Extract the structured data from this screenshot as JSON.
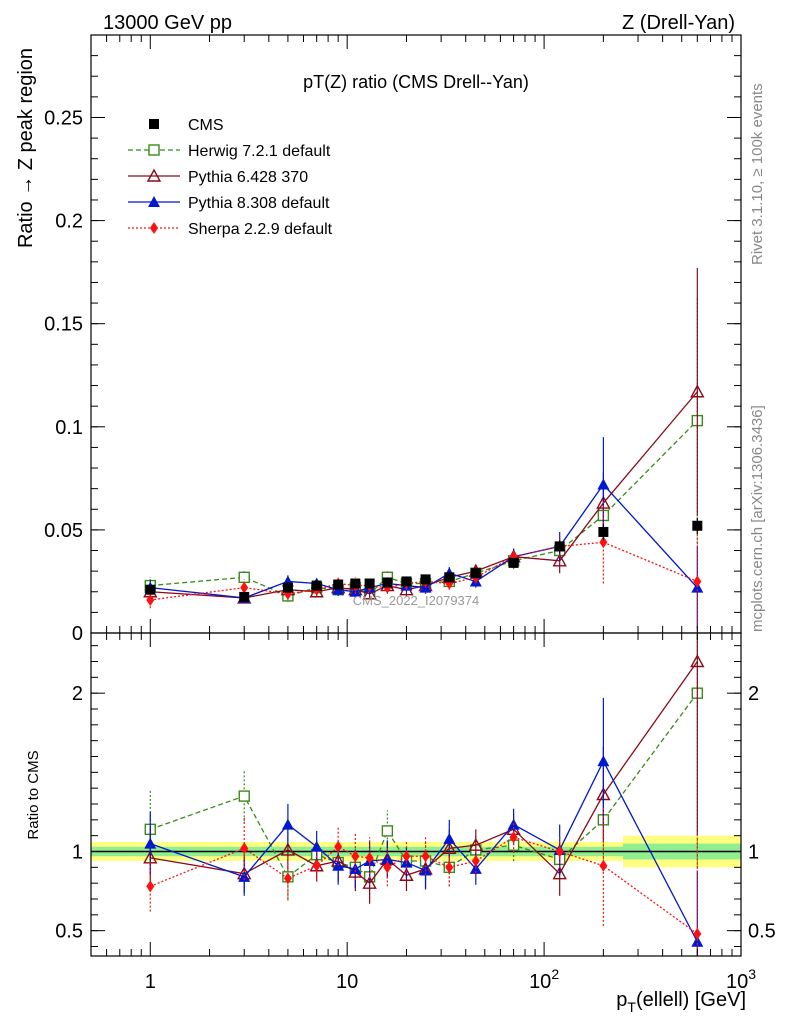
{
  "header": {
    "left": "13000 GeV pp",
    "right": "Z (Drell-Yan)",
    "side_top": "Rivet 3.1.10, ≥ 100k events",
    "side_bottom": "mcplots.cern.ch [arXiv:1306.3436]"
  },
  "chart_data": [
    {
      "type": "line",
      "title": "pT(Z) ratio (CMS Drell--Yan)",
      "ylabel": "Ratio → Z peak region",
      "watermark": "CMS_2022_I2079374",
      "xscale": "log",
      "xlim": [
        0.5,
        1000
      ],
      "ylim": [
        0,
        0.29
      ],
      "yticks": [
        {
          "v": 0,
          "label": "0"
        },
        {
          "v": 0.05,
          "label": "0.05"
        },
        {
          "v": 0.1,
          "label": "0.1"
        },
        {
          "v": 0.15,
          "label": "0.15"
        },
        {
          "v": 0.2,
          "label": "0.2"
        },
        {
          "v": 0.25,
          "label": "0.25"
        }
      ],
      "legend_position": "top-left",
      "series": [
        {
          "name": "CMS",
          "color": "#000000",
          "marker": "square-filled",
          "dash": "none",
          "x": [
            1,
            3,
            5,
            7,
            9,
            11,
            13,
            16,
            20,
            25,
            33,
            45,
            70,
            120,
            200,
            600
          ],
          "y": [
            0.021,
            0.0175,
            0.022,
            0.023,
            0.0235,
            0.024,
            0.024,
            0.0245,
            0.025,
            0.026,
            0.027,
            0.029,
            0.034,
            0.042,
            0.049,
            0.052
          ],
          "err": [
            0.002,
            0.001,
            0.001,
            0.001,
            0.001,
            0.001,
            0.001,
            0.001,
            0.001,
            0.001,
            0.0015,
            0.002,
            0.002,
            0.003,
            0.004,
            0.004
          ]
        },
        {
          "name": "Herwig 7.2.1 default",
          "color": "#3a8a1a",
          "marker": "square-open",
          "dash": "5,3",
          "x": [
            1,
            3,
            5,
            7,
            9,
            11,
            13,
            16,
            20,
            25,
            33,
            45,
            70,
            120,
            200,
            600
          ],
          "y": [
            0.023,
            0.027,
            0.018,
            0.022,
            0.021,
            0.022,
            0.019,
            0.027,
            0.024,
            0.024,
            0.025,
            0.029,
            0.035,
            0.04,
            0.057,
            0.103
          ],
          "err": [
            0.004,
            0.003,
            0.003,
            0.002,
            0.003,
            0.003,
            0.003,
            0.003,
            0.002,
            0.003,
            0.003,
            0.003,
            0.004,
            0.005,
            0.015,
            0.06
          ]
        },
        {
          "name": "Pythia 6.428 370",
          "color": "#8b0a1a",
          "marker": "triangle-open",
          "dash": "none",
          "x": [
            1,
            3,
            5,
            7,
            9,
            11,
            13,
            16,
            20,
            25,
            33,
            45,
            70,
            120,
            200,
            600
          ],
          "y": [
            0.02,
            0.017,
            0.021,
            0.02,
            0.022,
            0.021,
            0.019,
            0.023,
            0.021,
            0.023,
            0.027,
            0.03,
            0.037,
            0.035,
            0.063,
            0.117
          ],
          "err": [
            0.004,
            0.002,
            0.003,
            0.002,
            0.003,
            0.003,
            0.003,
            0.003,
            0.003,
            0.003,
            0.003,
            0.003,
            0.004,
            0.006,
            0.015,
            0.06
          ]
        },
        {
          "name": "Pythia 8.308 default",
          "color": "#0018d0",
          "marker": "triangle-filled",
          "dash": "none",
          "x": [
            1,
            3,
            5,
            7,
            9,
            11,
            13,
            16,
            20,
            25,
            33,
            45,
            70,
            120,
            200,
            600
          ],
          "y": [
            0.022,
            0.017,
            0.025,
            0.024,
            0.021,
            0.02,
            0.022,
            0.024,
            0.023,
            0.022,
            0.029,
            0.025,
            0.037,
            0.042,
            0.072,
            0.022
          ],
          "err": [
            0.004,
            0.002,
            0.003,
            0.002,
            0.003,
            0.003,
            0.003,
            0.003,
            0.003,
            0.003,
            0.003,
            0.003,
            0.004,
            0.007,
            0.023,
            0.02
          ]
        },
        {
          "name": "Sherpa 2.2.9 default",
          "color": "#ff1010",
          "marker": "diamond-filled",
          "dash": "2,2",
          "x": [
            1,
            3,
            5,
            7,
            9,
            11,
            13,
            16,
            20,
            25,
            33,
            45,
            70,
            120,
            200,
            600
          ],
          "y": [
            0.016,
            0.022,
            0.019,
            0.021,
            0.024,
            0.023,
            0.023,
            0.022,
            0.024,
            0.025,
            0.024,
            0.027,
            0.037,
            0.042,
            0.044,
            0.025
          ],
          "err": [
            0.004,
            0.004,
            0.003,
            0.003,
            0.003,
            0.004,
            0.003,
            0.003,
            0.003,
            0.003,
            0.003,
            0.003,
            0.004,
            0.005,
            0.02,
            0.03
          ]
        }
      ]
    },
    {
      "type": "line",
      "title": "",
      "xlabel": "p_T(ellell) [GeV]",
      "xlabel_main": "p",
      "xlabel_sub": "T",
      "xlabel_rest": "(ellell) [GeV]",
      "ylabel": "Ratio to CMS",
      "xscale": "log",
      "xlim": [
        0.5,
        1000
      ],
      "ylim": [
        0.34,
        2.38
      ],
      "xticks": [
        {
          "v": 1,
          "base": "1",
          "exp": ""
        },
        {
          "v": 10,
          "base": "10",
          "exp": ""
        },
        {
          "v": 100,
          "base": "10",
          "exp": "2"
        },
        {
          "v": 1000,
          "base": "10",
          "exp": "3"
        }
      ],
      "yticks": [
        {
          "v": 0.5,
          "label": "0.5"
        },
        {
          "v": 1,
          "label": "1"
        },
        {
          "v": 2,
          "label": "2"
        }
      ],
      "band_color_inner": "#90ee90",
      "band_color_outer": "#ffff80",
      "series": [
        {
          "name": "Herwig 7.2.1 default",
          "color": "#3a8a1a",
          "marker": "square-open",
          "dash": "5,3",
          "x": [
            1,
            3,
            5,
            7,
            9,
            11,
            13,
            16,
            20,
            25,
            33,
            45,
            70,
            120,
            200,
            600
          ],
          "y": [
            1.14,
            1.35,
            0.84,
            0.98,
            0.93,
            0.9,
            0.84,
            1.13,
            0.94,
            0.94,
            0.9,
            1.01,
            1.04,
            0.95,
            1.2,
            2.0
          ],
          "err": [
            0.25,
            0.16,
            0.15,
            0.1,
            0.12,
            0.12,
            0.14,
            0.13,
            0.1,
            0.12,
            0.12,
            0.1,
            0.1,
            0.1,
            0.3,
            1.1
          ]
        },
        {
          "name": "Pythia 6.428 370",
          "color": "#8b0a1a",
          "marker": "triangle-open",
          "dash": "none",
          "x": [
            1,
            3,
            5,
            7,
            9,
            11,
            13,
            16,
            20,
            25,
            33,
            45,
            70,
            120,
            200,
            600
          ],
          "y": [
            0.96,
            0.86,
            1.01,
            0.91,
            0.94,
            0.87,
            0.8,
            0.95,
            0.85,
            0.89,
            1.02,
            1.04,
            1.14,
            0.86,
            1.36,
            2.2
          ],
          "err": [
            0.2,
            0.12,
            0.13,
            0.1,
            0.12,
            0.12,
            0.13,
            0.12,
            0.1,
            0.12,
            0.12,
            0.1,
            0.1,
            0.14,
            0.3,
            1.1
          ]
        },
        {
          "name": "Pythia 8.308 default",
          "color": "#0018d0",
          "marker": "triangle-filled",
          "dash": "none",
          "x": [
            1,
            3,
            5,
            7,
            9,
            11,
            13,
            16,
            20,
            25,
            33,
            45,
            70,
            120,
            200,
            600
          ],
          "y": [
            1.05,
            0.84,
            1.17,
            1.03,
            0.91,
            0.89,
            0.94,
            0.95,
            0.93,
            0.88,
            1.08,
            0.89,
            1.17,
            1.01,
            1.57,
            0.43
          ],
          "err": [
            0.2,
            0.12,
            0.13,
            0.1,
            0.12,
            0.12,
            0.13,
            0.12,
            0.1,
            0.12,
            0.12,
            0.1,
            0.1,
            0.16,
            0.4,
            0.45
          ]
        },
        {
          "name": "Sherpa 2.2.9 default",
          "color": "#ff1010",
          "marker": "diamond-filled",
          "dash": "2,2",
          "x": [
            1,
            3,
            5,
            7,
            9,
            11,
            13,
            16,
            20,
            25,
            33,
            45,
            70,
            120,
            200,
            600
          ],
          "y": [
            0.78,
            1.02,
            0.83,
            0.91,
            1.03,
            0.97,
            0.96,
            0.9,
            0.97,
            0.97,
            0.9,
            0.94,
            1.09,
            1.0,
            0.91,
            0.48
          ],
          "err": [
            0.16,
            0.2,
            0.13,
            0.1,
            0.12,
            0.15,
            0.13,
            0.12,
            0.1,
            0.12,
            0.12,
            0.1,
            0.1,
            0.1,
            0.38,
            0.6
          ]
        }
      ]
    }
  ]
}
